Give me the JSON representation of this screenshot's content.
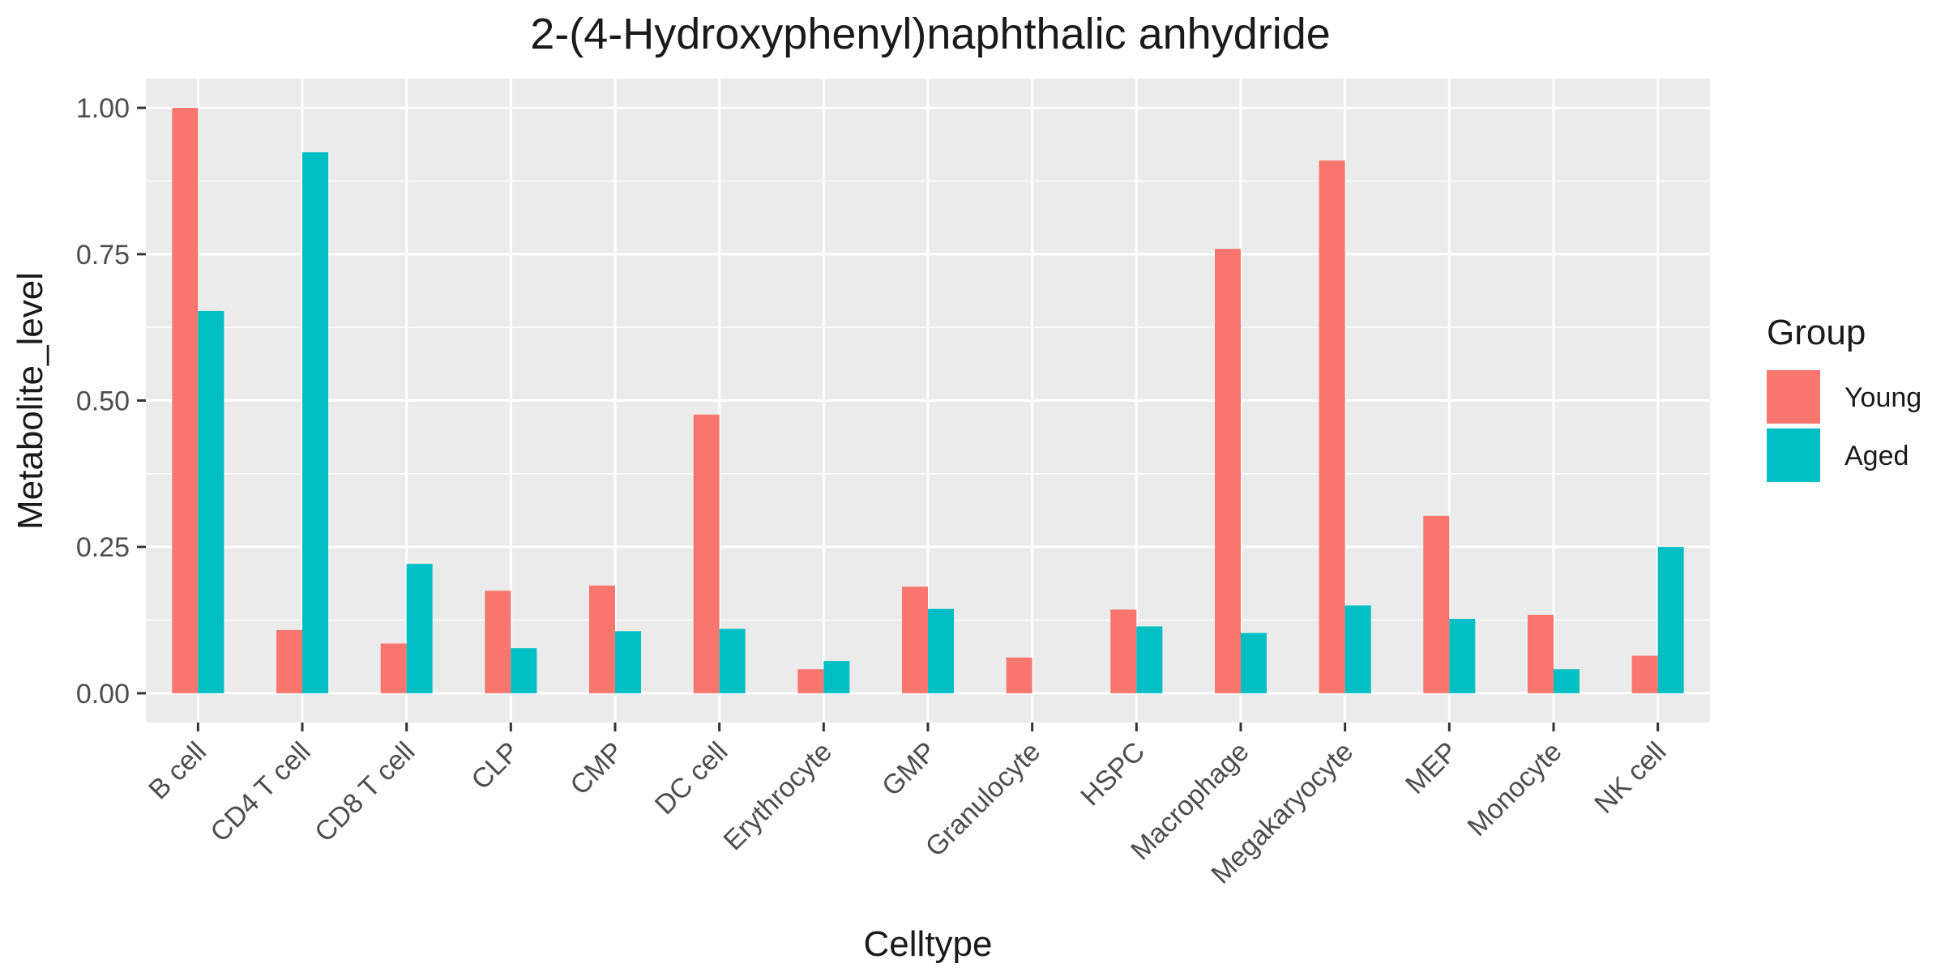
{
  "chart_data": {
    "type": "bar",
    "title": "2-(4-Hydroxyphenyl)naphthalic anhydride",
    "xlabel": "Celltype",
    "ylabel": "Metabolite_level",
    "ylim": [
      -0.05,
      1.05
    ],
    "yticks": [
      "0.00",
      "0.25",
      "0.50",
      "0.75",
      "1.00"
    ],
    "ytick_values": [
      0,
      0.25,
      0.5,
      0.75,
      1.0
    ],
    "grid": true,
    "legend": {
      "title": "Group",
      "placement": "right"
    },
    "categories": [
      "B cell",
      "CD4 T cell",
      "CD8 T cell",
      "CLP",
      "CMP",
      "DC cell",
      "Erythrocyte",
      "GMP",
      "Granulocyte",
      "HSPC",
      "Macrophage",
      "Megakaryocyte",
      "MEP",
      "Monocyte",
      "NK cell"
    ],
    "series": [
      {
        "name": "Young",
        "color": "#F8766D",
        "values": [
          1.0,
          0.108,
          0.085,
          0.175,
          0.184,
          0.476,
          0.041,
          0.182,
          0.061,
          0.143,
          0.759,
          0.91,
          0.303,
          0.134,
          0.064
        ]
      },
      {
        "name": "Aged",
        "color": "#00BFC4",
        "values": [
          0.653,
          0.924,
          0.221,
          0.077,
          0.106,
          0.11,
          0.055,
          0.144,
          null,
          0.114,
          0.103,
          0.15,
          0.127,
          0.041,
          0.25
        ]
      }
    ]
  }
}
